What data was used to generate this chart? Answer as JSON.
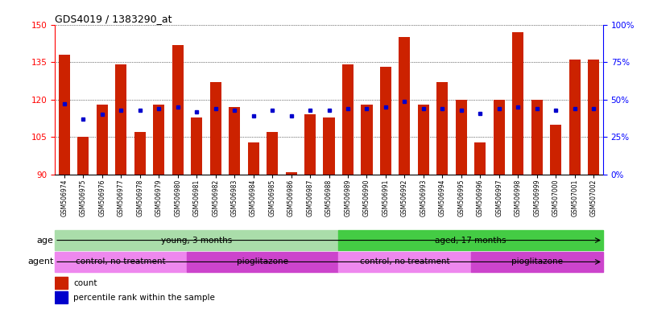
{
  "title": "GDS4019 / 1383290_at",
  "samples": [
    "GSM506974",
    "GSM506975",
    "GSM506976",
    "GSM506977",
    "GSM506978",
    "GSM506979",
    "GSM506980",
    "GSM506981",
    "GSM506982",
    "GSM506983",
    "GSM506984",
    "GSM506985",
    "GSM506986",
    "GSM506987",
    "GSM506988",
    "GSM506989",
    "GSM506990",
    "GSM506991",
    "GSM506992",
    "GSM506993",
    "GSM506994",
    "GSM506995",
    "GSM506996",
    "GSM506997",
    "GSM506998",
    "GSM506999",
    "GSM507000",
    "GSM507001",
    "GSM507002"
  ],
  "count_values": [
    138,
    105,
    118,
    134,
    107,
    118,
    142,
    113,
    127,
    117,
    103,
    107,
    91,
    114,
    113,
    134,
    118,
    133,
    145,
    118,
    127,
    120,
    103,
    120,
    147,
    120,
    110,
    136,
    136
  ],
  "percentile_values": [
    47,
    37,
    40,
    43,
    43,
    44,
    45,
    42,
    44,
    43,
    39,
    43,
    39,
    43,
    43,
    44,
    44,
    45,
    49,
    44,
    44,
    43,
    41,
    44,
    45,
    44,
    43,
    44,
    44
  ],
  "bar_color": "#cc2200",
  "dot_color": "#0000cc",
  "ylim_left": [
    90,
    150
  ],
  "ylim_right": [
    0,
    100
  ],
  "yticks_left": [
    90,
    105,
    120,
    135,
    150
  ],
  "yticks_right": [
    0,
    25,
    50,
    75,
    100
  ],
  "age_groups": [
    {
      "label": "young, 3 months",
      "start": 0,
      "end": 15,
      "color": "#aaddaa"
    },
    {
      "label": "aged, 17 months",
      "start": 15,
      "end": 29,
      "color": "#44cc44"
    }
  ],
  "agent_groups": [
    {
      "label": "control, no treatment",
      "start": 0,
      "end": 7,
      "color": "#ee88ee"
    },
    {
      "label": "pioglitazone",
      "start": 7,
      "end": 15,
      "color": "#cc44cc"
    },
    {
      "label": "control, no treatment",
      "start": 15,
      "end": 22,
      "color": "#ee88ee"
    },
    {
      "label": "pioglitazone",
      "start": 22,
      "end": 29,
      "color": "#cc44cc"
    }
  ],
  "legend_count_label": "count",
  "legend_percentile_label": "percentile rank within the sample",
  "age_label": "age",
  "agent_label": "agent",
  "fig_width": 8.01,
  "fig_height": 3.84,
  "dpi": 100
}
